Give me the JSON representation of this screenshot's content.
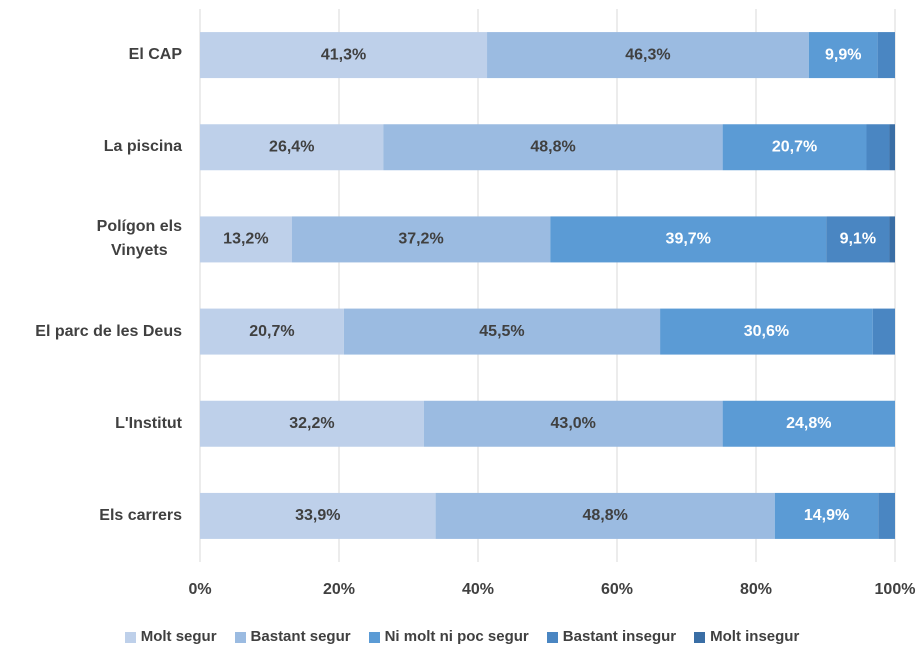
{
  "chart_data": {
    "type": "stacked_barh",
    "categories": [
      "El CAP",
      "La piscina",
      "Polígon els\nVinyets",
      "El parc de les Deus",
      "L'Institut",
      "Els carrers"
    ],
    "series": [
      {
        "name": "Molt segur",
        "color": "#bed0ea",
        "values": [
          41.3,
          26.4,
          13.2,
          20.7,
          32.2,
          33.9
        ],
        "value_labels": [
          "41,3%",
          "26,4%",
          "13,2%",
          "20,7%",
          "32,2%",
          "33,9%"
        ]
      },
      {
        "name": "Bastant segur",
        "color": "#9bbbe1",
        "values": [
          46.3,
          48.8,
          37.2,
          45.5,
          43.0,
          48.8
        ],
        "value_labels": [
          "46,3%",
          "48,8%",
          "37,2%",
          "45,5%",
          "43,0%",
          "48,8%"
        ]
      },
      {
        "name": "Ni molt ni poc segur",
        "color": "#5b9bd5",
        "values": [
          9.9,
          20.7,
          39.7,
          30.6,
          24.8,
          14.9
        ],
        "value_labels": [
          "9,9%",
          "20,7%",
          "39,7%",
          "30,6%",
          "24,8%",
          "14,9%"
        ]
      },
      {
        "name": "Bastant insegur",
        "color": "#4a86c2",
        "values": [
          2.5,
          3.3,
          9.1,
          3.2,
          0,
          2.4
        ],
        "value_labels": [
          null,
          null,
          "9,1%",
          null,
          null,
          null
        ]
      },
      {
        "name": "Molt insegur",
        "color": "#3a6ea5",
        "values": [
          0,
          0.8,
          0.8,
          0,
          0,
          0
        ],
        "value_labels": [
          null,
          null,
          null,
          null,
          null,
          null
        ]
      }
    ],
    "xlim": [
      0,
      100
    ],
    "xticks": [
      {
        "value": 0,
        "label": "0%"
      },
      {
        "value": 20,
        "label": "20%"
      },
      {
        "value": 40,
        "label": "40%"
      },
      {
        "value": 60,
        "label": "60%"
      },
      {
        "value": 80,
        "label": "80%"
      },
      {
        "value": 100,
        "label": "100%"
      }
    ],
    "grid": true
  }
}
